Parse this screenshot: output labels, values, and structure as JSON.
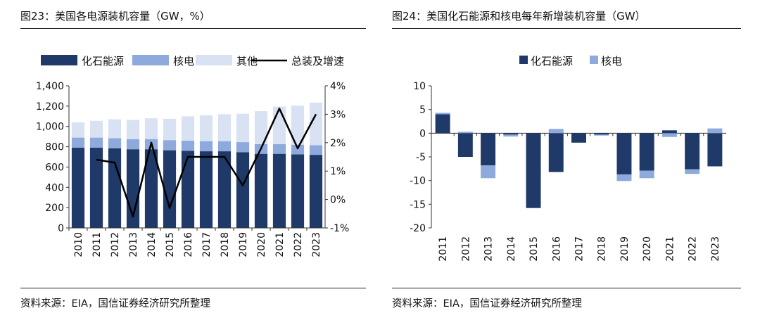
{
  "left": {
    "title": "图23：美国各电源装机容量（GW，%）",
    "source": "资料来源：EIA，国信证券经济研究所整理",
    "chart_data": {
      "type": "bar+line",
      "categories": [
        "2010",
        "2011",
        "2012",
        "2013",
        "2014",
        "2015",
        "2016",
        "2017",
        "2018",
        "2019",
        "2020",
        "2021",
        "2022",
        "2023"
      ],
      "series": [
        {
          "name": "化石能源",
          "kind": "stacked-bar",
          "color": "#1f3a68",
          "values": [
            790,
            790,
            785,
            775,
            775,
            765,
            760,
            755,
            755,
            745,
            730,
            730,
            725,
            720
          ]
        },
        {
          "name": "核电",
          "kind": "stacked-bar",
          "color": "#8ea9db",
          "values": [
            100,
            100,
            100,
            100,
            100,
            100,
            100,
            100,
            100,
            100,
            95,
            95,
            95,
            95
          ]
        },
        {
          "name": "其他",
          "kind": "stacked-bar",
          "color": "#d9e2f3",
          "values": [
            150,
            165,
            185,
            190,
            205,
            210,
            240,
            255,
            265,
            280,
            325,
            370,
            385,
            420
          ]
        },
        {
          "name": "总装及增速",
          "kind": "line",
          "axis": "right",
          "color": "#000000",
          "values": [
            null,
            1.4,
            1.3,
            -0.6,
            2.0,
            -0.3,
            1.5,
            1.5,
            1.5,
            0.5,
            1.8,
            3.2,
            1.8,
            3.0
          ]
        }
      ],
      "y_left": {
        "min": 0,
        "max": 1400,
        "ticks": [
          "0",
          "200",
          "400",
          "600",
          "800",
          "1,000",
          "1,200",
          "1,400"
        ]
      },
      "y_right": {
        "min": -1,
        "max": 4,
        "ticks": [
          "-1%",
          "0%",
          "1%",
          "2%",
          "3%",
          "4%"
        ]
      },
      "legend": [
        "化石能源",
        "核电",
        "其他",
        "总装及增速"
      ]
    }
  },
  "right": {
    "title": "图24：美国化石能源和核电每年新增装机容量（GW）",
    "source": "资料来源：EIA，国信证券经济研究所整理",
    "chart_data": {
      "type": "bar",
      "categories": [
        "2011",
        "2012",
        "2013",
        "2014",
        "2015",
        "2016",
        "2017",
        "2018",
        "2019",
        "2020",
        "2021",
        "2022",
        "2023"
      ],
      "series": [
        {
          "name": "化石能源",
          "color": "#1f3a68",
          "values": [
            4.0,
            -5.0,
            -6.8,
            -0.3,
            -15.8,
            -8.2,
            -2.0,
            -0.3,
            -8.7,
            -7.9,
            0.6,
            -7.6,
            -7.0
          ]
        },
        {
          "name": "核电",
          "color": "#8ea9db",
          "values": [
            0.3,
            0.3,
            -2.7,
            -0.4,
            0,
            0.9,
            0,
            -0.2,
            -1.4,
            -1.6,
            -0.8,
            -1.0,
            1.0
          ]
        }
      ],
      "y": {
        "min": -20,
        "max": 10,
        "ticks": [
          "-20",
          "-15",
          "-10",
          "-5",
          "0",
          "5",
          "10"
        ]
      },
      "legend": [
        "化石能源",
        "核电"
      ]
    }
  }
}
